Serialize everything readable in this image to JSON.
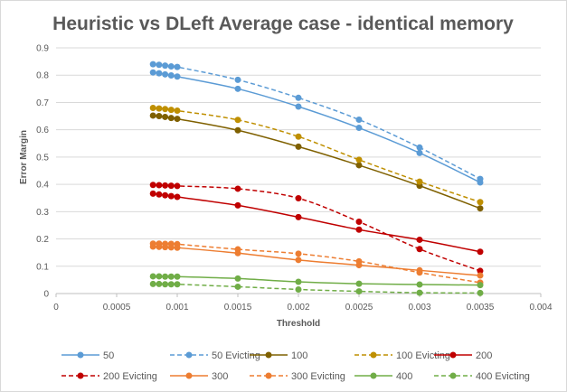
{
  "chart_data": {
    "type": "line",
    "title": "Heuristic vs DLeft Average case - identical memory",
    "xlabel": "Threshold",
    "ylabel": "Error Margin",
    "xlim": [
      0,
      0.004
    ],
    "ylim": [
      0,
      0.9
    ],
    "x_ticks": [
      "0",
      "0.0005",
      "0.001",
      "0.0015",
      "0.002",
      "0.0025",
      "0.003",
      "0.0035",
      "0.004"
    ],
    "y_ticks": [
      "0",
      "0.1",
      "0.2",
      "0.3",
      "0.4",
      "0.5",
      "0.6",
      "0.7",
      "0.8",
      "0.9"
    ],
    "x": [
      0.0008,
      0.00085,
      0.0009,
      0.00095,
      0.001,
      0.0015,
      0.002,
      0.0025,
      0.003,
      0.0035
    ],
    "grid": true,
    "legend_position": "bottom",
    "series": [
      {
        "name": "50",
        "color": "#5b9bd5",
        "dashed": false,
        "values": [
          0.81,
          0.807,
          0.803,
          0.799,
          0.795,
          0.75,
          0.685,
          0.607,
          0.515,
          0.407
        ]
      },
      {
        "name": "50 Evicting",
        "color": "#5b9bd5",
        "dashed": true,
        "values": [
          0.84,
          0.838,
          0.835,
          0.832,
          0.83,
          0.783,
          0.717,
          0.637,
          0.535,
          0.42
        ]
      },
      {
        "name": "100",
        "color": "#7f6000",
        "dashed": false,
        "values": [
          0.652,
          0.65,
          0.647,
          0.643,
          0.64,
          0.598,
          0.538,
          0.47,
          0.395,
          0.312
        ]
      },
      {
        "name": "100 Evicting",
        "color": "#bf8f00",
        "dashed": true,
        "values": [
          0.68,
          0.678,
          0.676,
          0.673,
          0.67,
          0.636,
          0.575,
          0.49,
          0.41,
          0.335
        ]
      },
      {
        "name": "200",
        "color": "#c00000",
        "dashed": false,
        "values": [
          0.366,
          0.363,
          0.36,
          0.357,
          0.354,
          0.323,
          0.28,
          0.234,
          0.197,
          0.153
        ]
      },
      {
        "name": "200 Evicting",
        "color": "#c00000",
        "dashed": true,
        "values": [
          0.398,
          0.397,
          0.396,
          0.395,
          0.394,
          0.384,
          0.349,
          0.263,
          0.163,
          0.083
        ]
      },
      {
        "name": "300",
        "color": "#ed7d31",
        "dashed": false,
        "values": [
          0.172,
          0.171,
          0.17,
          0.169,
          0.168,
          0.148,
          0.123,
          0.104,
          0.085,
          0.066
        ]
      },
      {
        "name": "300 Evicting",
        "color": "#ed7d31",
        "dashed": true,
        "values": [
          0.183,
          0.183,
          0.182,
          0.182,
          0.181,
          0.162,
          0.146,
          0.118,
          0.077,
          0.04
        ]
      },
      {
        "name": "400",
        "color": "#70ad47",
        "dashed": false,
        "values": [
          0.063,
          0.063,
          0.062,
          0.062,
          0.062,
          0.055,
          0.043,
          0.036,
          0.033,
          0.031
        ]
      },
      {
        "name": "400 Evicting",
        "color": "#70ad47",
        "dashed": true,
        "values": [
          0.035,
          0.035,
          0.034,
          0.034,
          0.034,
          0.025,
          0.015,
          0.008,
          0.003,
          0.002
        ]
      }
    ]
  }
}
